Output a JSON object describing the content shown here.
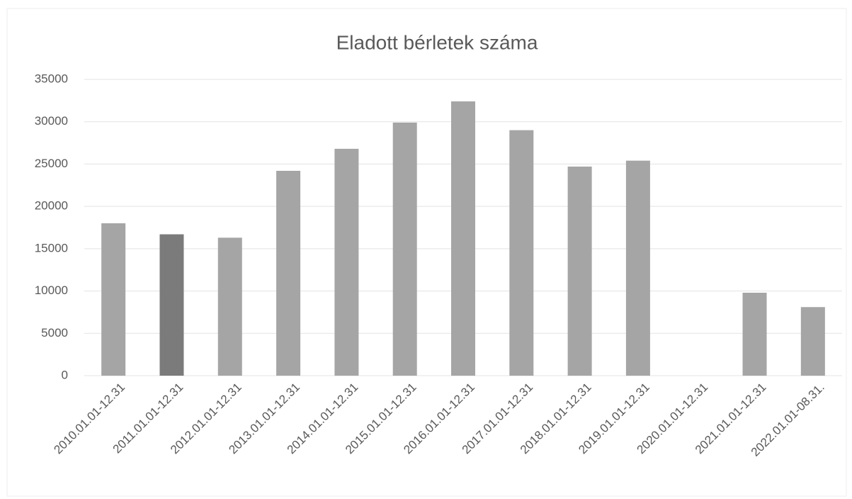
{
  "chart_data": {
    "type": "bar",
    "title": "Eladott bérletek száma",
    "categories": [
      "2010.01.01-12.31",
      "2011.01.01-12.31",
      "2012.01.01-12.31",
      "2013.01.01-12.31",
      "2014.01.01-12.31",
      "2015.01.01-12.31",
      "2016.01.01-12.31",
      "2017.01.01-12.31",
      "2018.01.01-12.31",
      "2019.01.01-12.31",
      "2020.01.01-12.31",
      "2021.01.01-12.31",
      "2022.01.01-08.31."
    ],
    "values": [
      18000,
      16700,
      16300,
      24200,
      26800,
      29900,
      32400,
      29000,
      24700,
      25400,
      0,
      9800,
      8100
    ],
    "colors": [
      "#a5a5a5",
      "#7b7b7b",
      "#a5a5a5",
      "#a5a5a5",
      "#a5a5a5",
      "#a5a5a5",
      "#a5a5a5",
      "#a5a5a5",
      "#a5a5a5",
      "#a5a5a5",
      "#a5a5a5",
      "#a5a5a5",
      "#a5a5a5"
    ],
    "ylim": [
      0,
      35000
    ],
    "yticks": [
      0,
      5000,
      10000,
      15000,
      20000,
      25000,
      30000,
      35000
    ],
    "grid": true
  }
}
